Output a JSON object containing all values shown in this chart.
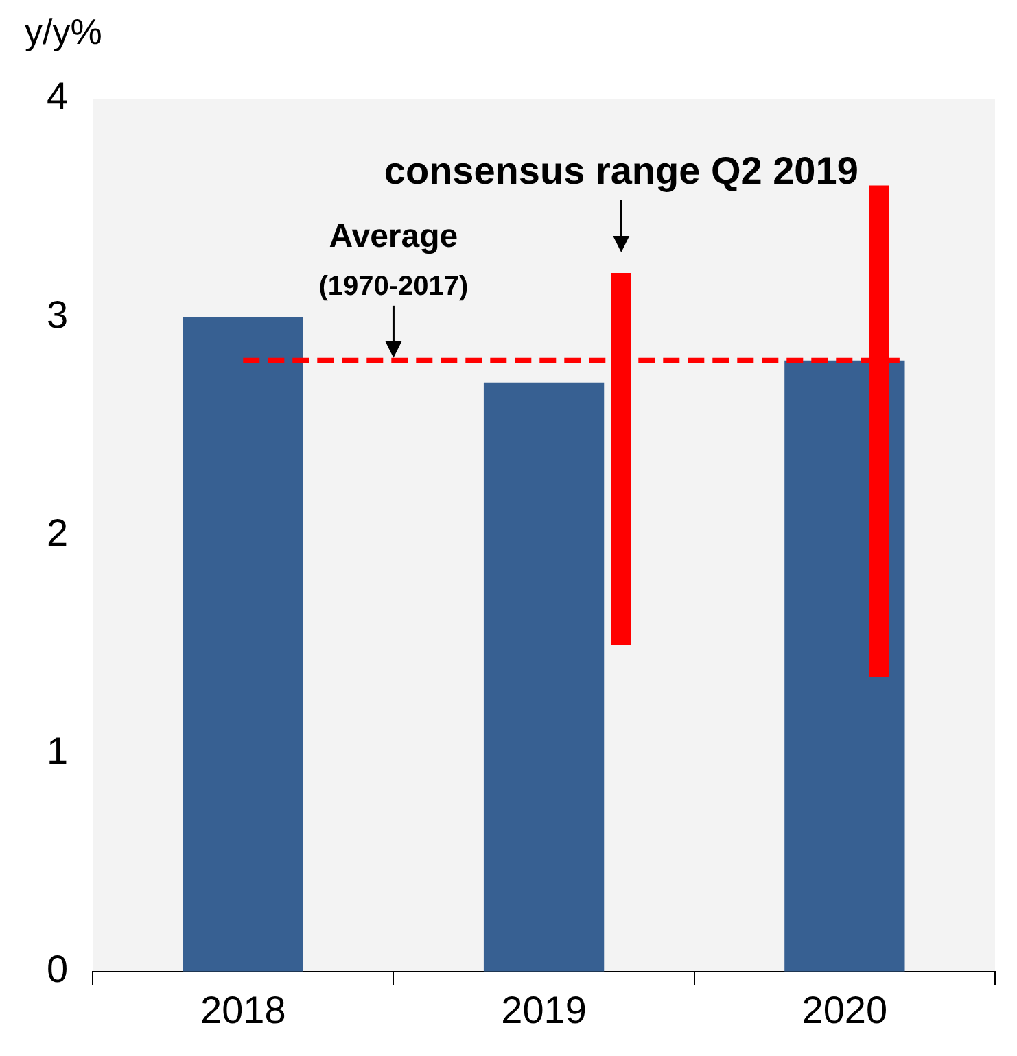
{
  "chart_data": {
    "type": "bar",
    "ylabel": "y/y%",
    "categories": [
      "2018",
      "2019",
      "2020"
    ],
    "ylim": [
      0,
      4
    ],
    "yticks": [
      0,
      1,
      2,
      3,
      4
    ],
    "grid": false,
    "legend": false,
    "series": [
      {
        "color": "#376092",
        "values": [
          3.0,
          2.7,
          2.8
        ]
      },
      {
        "color": "#ff0000",
        "base": [
          null,
          1.5,
          1.35
        ],
        "values": [
          null,
          1.7,
          2.25
        ]
      }
    ],
    "ref_lines": [
      {
        "axis": "y",
        "value": 2.8,
        "label": "Average (1970-2017)",
        "color": "#ff0000",
        "line_style": "dashed"
      }
    ],
    "annotations": [
      "consensus range Q2 2019"
    ]
  }
}
